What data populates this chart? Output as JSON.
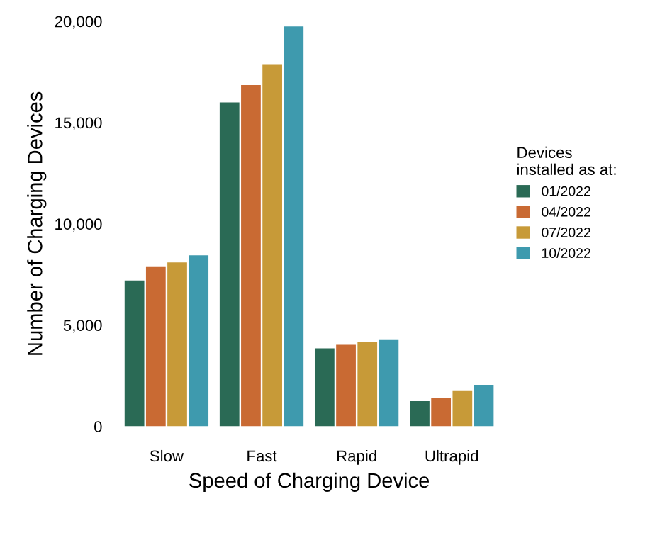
{
  "chart_data": {
    "type": "bar",
    "xlabel": "Speed of Charging Device",
    "ylabel": "Number of Charging Devices",
    "legend_title": "Devices\ninstalled as at:",
    "categories": [
      "Slow",
      "Fast",
      "Rapid",
      "Ultrapid"
    ],
    "series": [
      {
        "name": "01/2022",
        "color": "#2a6a55",
        "values": [
          7200,
          16000,
          3850,
          1250
        ]
      },
      {
        "name": "04/2022",
        "color": "#c96a33",
        "values": [
          7900,
          16850,
          4030,
          1400
        ]
      },
      {
        "name": "07/2022",
        "color": "#c79a38",
        "values": [
          8100,
          17850,
          4180,
          1780
        ]
      },
      {
        "name": "10/2022",
        "color": "#3e9aae",
        "values": [
          8450,
          19750,
          4300,
          2050
        ]
      }
    ],
    "ylim": [
      0,
      20000
    ],
    "yticks": [
      {
        "value": 0,
        "label": "0"
      },
      {
        "value": 5000,
        "label": "5,000"
      },
      {
        "value": 10000,
        "label": "10,000"
      },
      {
        "value": 15000,
        "label": "15,000"
      },
      {
        "value": 20000,
        "label": "20,000"
      }
    ],
    "grid": false,
    "legend": "right"
  }
}
